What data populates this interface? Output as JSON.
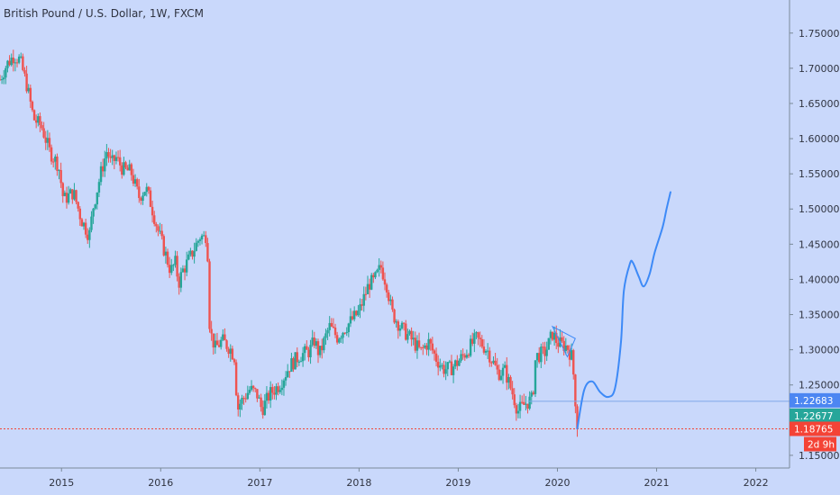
{
  "header": {
    "title": "British Pound / U.S. Dollar, 1W, FXCM"
  },
  "colors": {
    "background": "#c9d8fb",
    "candle_up": "#26a69a",
    "candle_down": "#ef5350",
    "projection": "#3d8af7",
    "support_line": "#7fa7ea",
    "tag_blue": "#4c86f2",
    "tag_red": "#f44336",
    "tag_teal": "#26a69a",
    "axis_text": "#2f3340"
  },
  "price_tags": {
    "level_a": "1.22683",
    "level_b": "1.22677",
    "last_price": "1.18765",
    "countdown": "2d 9h"
  },
  "chart_data": {
    "type": "candlestick",
    "title": "British Pound / U.S. Dollar, 1W, FXCM",
    "symbol": "GBP/USD",
    "timeframe": "1W",
    "source": "FXCM",
    "x_ticks": [
      "2015",
      "2016",
      "2017",
      "2018",
      "2019",
      "2020",
      "2021",
      "2022"
    ],
    "y_ticks": [
      "1.75000",
      "1.70000",
      "1.65000",
      "1.60000",
      "1.55000",
      "1.50000",
      "1.45000",
      "1.40000",
      "1.35000",
      "1.30000",
      "1.25000",
      "1.20000",
      "1.15000"
    ],
    "ylim": [
      1.132,
      1.797
    ],
    "xlim": [
      2014.38,
      2022.34
    ],
    "price_path": [
      [
        2014.38,
        1.684
      ],
      [
        2014.45,
        1.706
      ],
      [
        2014.52,
        1.718
      ],
      [
        2014.58,
        1.712
      ],
      [
        2014.65,
        1.676
      ],
      [
        2014.72,
        1.628
      ],
      [
        2014.8,
        1.617
      ],
      [
        2014.88,
        1.582
      ],
      [
        2014.97,
        1.562
      ],
      [
        2015.02,
        1.513
      ],
      [
        2015.12,
        1.524
      ],
      [
        2015.2,
        1.485
      ],
      [
        2015.28,
        1.462
      ],
      [
        2015.32,
        1.503
      ],
      [
        2015.4,
        1.553
      ],
      [
        2015.46,
        1.584
      ],
      [
        2015.5,
        1.563
      ],
      [
        2015.55,
        1.573
      ],
      [
        2015.62,
        1.556
      ],
      [
        2015.7,
        1.553
      ],
      [
        2015.78,
        1.517
      ],
      [
        2015.85,
        1.53
      ],
      [
        2015.9,
        1.508
      ],
      [
        2015.97,
        1.471
      ],
      [
        2016.05,
        1.435
      ],
      [
        2016.1,
        1.412
      ],
      [
        2016.15,
        1.424
      ],
      [
        2016.18,
        1.394
      ],
      [
        2016.22,
        1.412
      ],
      [
        2016.3,
        1.432
      ],
      [
        2016.4,
        1.462
      ],
      [
        2016.45,
        1.458
      ],
      [
        2016.47,
        1.479
      ],
      [
        2016.48,
        1.363
      ],
      [
        2016.5,
        1.325
      ],
      [
        2016.55,
        1.302
      ],
      [
        2016.62,
        1.313
      ],
      [
        2016.7,
        1.302
      ],
      [
        2016.75,
        1.288
      ],
      [
        2016.77,
        1.213
      ],
      [
        2016.8,
        1.224
      ],
      [
        2016.9,
        1.244
      ],
      [
        2016.97,
        1.237
      ],
      [
        2017.02,
        1.215
      ],
      [
        2017.1,
        1.237
      ],
      [
        2017.2,
        1.251
      ],
      [
        2017.3,
        1.277
      ],
      [
        2017.4,
        1.292
      ],
      [
        2017.5,
        1.298
      ],
      [
        2017.55,
        1.313
      ],
      [
        2017.6,
        1.293
      ],
      [
        2017.7,
        1.333
      ],
      [
        2017.78,
        1.318
      ],
      [
        2017.87,
        1.333
      ],
      [
        2018.0,
        1.354
      ],
      [
        2018.1,
        1.394
      ],
      [
        2018.15,
        1.397
      ],
      [
        2018.22,
        1.418
      ],
      [
        2018.28,
        1.392
      ],
      [
        2018.33,
        1.353
      ],
      [
        2018.42,
        1.332
      ],
      [
        2018.55,
        1.311
      ],
      [
        2018.62,
        1.297
      ],
      [
        2018.7,
        1.311
      ],
      [
        2018.78,
        1.287
      ],
      [
        2018.85,
        1.273
      ],
      [
        2018.92,
        1.273
      ],
      [
        2019.0,
        1.283
      ],
      [
        2019.08,
        1.297
      ],
      [
        2019.18,
        1.316
      ],
      [
        2019.22,
        1.311
      ],
      [
        2019.3,
        1.298
      ],
      [
        2019.4,
        1.267
      ],
      [
        2019.47,
        1.27
      ],
      [
        2019.55,
        1.237
      ],
      [
        2019.6,
        1.213
      ],
      [
        2019.68,
        1.224
      ],
      [
        2019.75,
        1.23
      ],
      [
        2019.78,
        1.29
      ],
      [
        2019.88,
        1.297
      ],
      [
        2019.95,
        1.323
      ],
      [
        2020.0,
        1.31
      ],
      [
        2020.1,
        1.304
      ],
      [
        2020.15,
        1.288
      ],
      [
        2020.18,
        1.23
      ],
      [
        2020.2,
        1.188
      ]
    ],
    "projection": {
      "name": "",
      "points": [
        [
          2020.2,
          1.188
        ],
        [
          2020.27,
          1.243
        ],
        [
          2020.35,
          1.255
        ],
        [
          2020.43,
          1.24
        ],
        [
          2020.51,
          1.233
        ],
        [
          2020.58,
          1.245
        ],
        [
          2020.64,
          1.31
        ],
        [
          2020.67,
          1.384
        ],
        [
          2020.73,
          1.422
        ],
        [
          2020.76,
          1.424
        ],
        [
          2020.82,
          1.404
        ],
        [
          2020.87,
          1.39
        ],
        [
          2020.93,
          1.408
        ],
        [
          2020.98,
          1.438
        ],
        [
          2021.06,
          1.474
        ],
        [
          2021.1,
          1.5
        ],
        [
          2021.14,
          1.524
        ]
      ]
    },
    "triangle": [
      [
        2019.95,
        1.333
      ],
      [
        2020.18,
        1.316
      ],
      [
        2020.1,
        1.29
      ]
    ],
    "support_level": {
      "y": 1.2268,
      "from": 2019.7,
      "to": 2022.34
    },
    "last_price": 1.18765,
    "last_price_line": {
      "style": "dotted"
    },
    "grid": false,
    "legend": "none"
  }
}
